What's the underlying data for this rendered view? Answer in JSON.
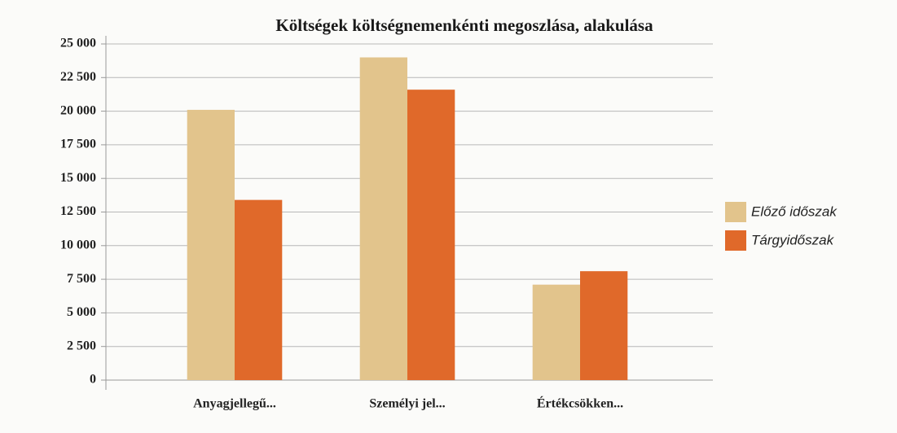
{
  "chart_data": {
    "type": "bar",
    "title": "Költségek költségnemenkénti megoszlása, alakulása",
    "categories": [
      "Anyagjellegű...",
      "Személyi jel...",
      "Értékcsökken..."
    ],
    "series": [
      {
        "name": "Előző időszak",
        "color": "#e2c48c",
        "values": [
          20100,
          24000,
          7100
        ]
      },
      {
        "name": "Tárgyidőszak",
        "color": "#e0692a",
        "values": [
          13400,
          21600,
          8100
        ]
      }
    ],
    "ylim": [
      0,
      25000
    ],
    "yticks": [
      0,
      {
        "value": 2500,
        "label": "2 500"
      },
      {
        "value": 5000,
        "label": "5 000"
      },
      {
        "value": 7500,
        "label": "7 500"
      },
      {
        "value": 10000,
        "label": "10 000"
      },
      {
        "value": 12500,
        "label": "12 500"
      },
      {
        "value": 15000,
        "label": "15 000"
      },
      {
        "value": 17500,
        "label": "17 500"
      },
      {
        "value": 20000,
        "label": "20 000"
      },
      {
        "value": 22500,
        "label": "22 500"
      },
      {
        "value": 25000,
        "label": "25 000"
      }
    ],
    "grid": true,
    "legend": "right"
  }
}
